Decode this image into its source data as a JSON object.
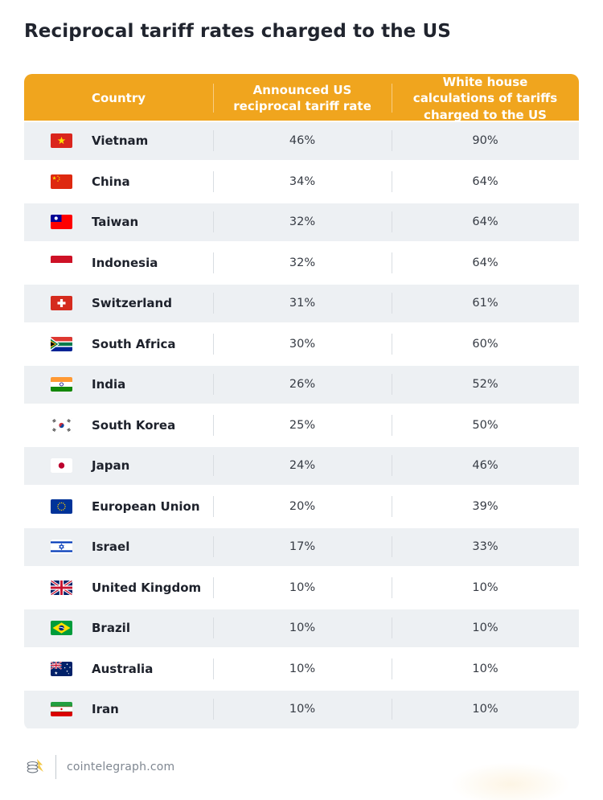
{
  "title": "Reciprocal tariff rates charged to the US",
  "colors": {
    "header_bg": "#F0A51E",
    "alt_row_bg": "#EDF0F3",
    "title_color": "#20242E",
    "country_color": "#1D212B",
    "value_color": "#363B44"
  },
  "table": {
    "headers": [
      "Country",
      "Announced US reciprocal tariff rate",
      "White house calculations of tariffs charged to the US"
    ],
    "rows": [
      {
        "country": "Vietnam",
        "flag": "vietnam",
        "announced": "46%",
        "calculated": "90%"
      },
      {
        "country": "China",
        "flag": "china",
        "announced": "34%",
        "calculated": "64%"
      },
      {
        "country": "Taiwan",
        "flag": "taiwan",
        "announced": "32%",
        "calculated": "64%"
      },
      {
        "country": "Indonesia",
        "flag": "indonesia",
        "announced": "32%",
        "calculated": "64%"
      },
      {
        "country": "Switzerland",
        "flag": "switzerland",
        "announced": "31%",
        "calculated": "61%"
      },
      {
        "country": "South Africa",
        "flag": "south-africa",
        "announced": "30%",
        "calculated": "60%"
      },
      {
        "country": "India",
        "flag": "india",
        "announced": "26%",
        "calculated": "52%"
      },
      {
        "country": "South Korea",
        "flag": "south-korea",
        "announced": "25%",
        "calculated": "50%"
      },
      {
        "country": "Japan",
        "flag": "japan",
        "announced": "24%",
        "calculated": "46%"
      },
      {
        "country": "European Union",
        "flag": "european-union",
        "announced": "20%",
        "calculated": "39%"
      },
      {
        "country": "Israel",
        "flag": "israel",
        "announced": "17%",
        "calculated": "33%"
      },
      {
        "country": "United Kingdom",
        "flag": "united-kingdom",
        "announced": "10%",
        "calculated": "10%"
      },
      {
        "country": "Brazil",
        "flag": "brazil",
        "announced": "10%",
        "calculated": "10%"
      },
      {
        "country": "Australia",
        "flag": "australia",
        "announced": "10%",
        "calculated": "10%"
      },
      {
        "country": "Iran",
        "flag": "iran",
        "announced": "10%",
        "calculated": "10%"
      }
    ]
  },
  "footer": {
    "site": "cointelegraph.com",
    "logo": "cointelegraph-logo"
  },
  "chart_data": {
    "type": "table",
    "title": "Reciprocal tariff rates charged to the US",
    "columns": [
      "Country",
      "Announced US reciprocal tariff rate (%)",
      "White house calculations of tariffs charged to the US (%)"
    ],
    "rows": [
      [
        "Vietnam",
        46,
        90
      ],
      [
        "China",
        34,
        64
      ],
      [
        "Taiwan",
        32,
        64
      ],
      [
        "Indonesia",
        32,
        64
      ],
      [
        "Switzerland",
        31,
        61
      ],
      [
        "South Africa",
        30,
        60
      ],
      [
        "India",
        26,
        52
      ],
      [
        "South Korea",
        25,
        50
      ],
      [
        "Japan",
        24,
        46
      ],
      [
        "European Union",
        20,
        39
      ],
      [
        "Israel",
        17,
        33
      ],
      [
        "United Kingdom",
        10,
        10
      ],
      [
        "Brazil",
        10,
        10
      ],
      [
        "Australia",
        10,
        10
      ],
      [
        "Iran",
        10,
        10
      ]
    ],
    "units": "percent"
  }
}
